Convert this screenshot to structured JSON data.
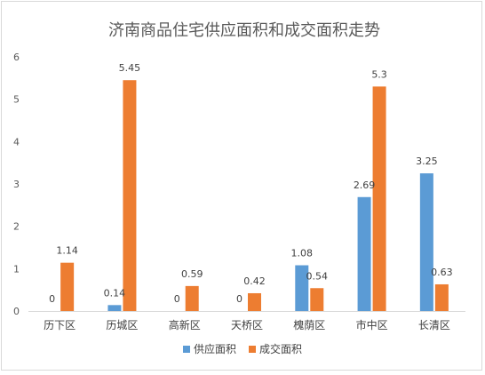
{
  "chart_data": {
    "type": "bar",
    "title": "济南商品住宅供应面积和成交面积走势",
    "categories": [
      "历下区",
      "历城区",
      "高新区",
      "天桥区",
      "槐荫区",
      "市中区",
      "长清区"
    ],
    "series": [
      {
        "name": "供应面积",
        "color": "#5b9bd5",
        "values": [
          0,
          0.14,
          0,
          0,
          1.08,
          2.69,
          3.25
        ]
      },
      {
        "name": "成交面积",
        "color": "#ed7d31",
        "values": [
          1.14,
          5.45,
          0.59,
          0.42,
          0.54,
          5.3,
          0.63
        ]
      }
    ],
    "ylim": [
      0,
      6
    ],
    "yticks": [
      0,
      1,
      2,
      3,
      4,
      5,
      6
    ],
    "grid": false,
    "legend": "bottom",
    "xlabel": "",
    "ylabel": ""
  }
}
